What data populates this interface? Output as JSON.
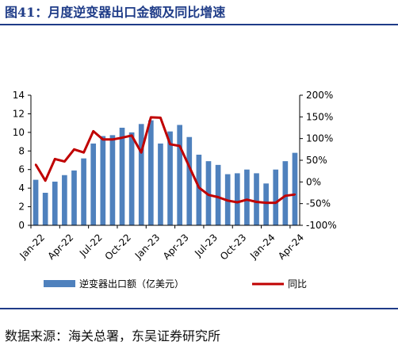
{
  "header": {
    "title": "图41：月度逆变器出口金额及同比增速"
  },
  "footer": {
    "source": "数据来源：海关总署，东吴证券研究所"
  },
  "colors": {
    "bar": "#4f81bd",
    "line": "#c00000",
    "rule": "#1f3c88"
  },
  "chart_data": {
    "type": "bar",
    "title": "",
    "categories": [
      "Jan-22",
      "Feb-22",
      "Mar-22",
      "Apr-22",
      "May-22",
      "Jun-22",
      "Jul-22",
      "Aug-22",
      "Sep-22",
      "Oct-22",
      "Nov-22",
      "Dec-22",
      "Jan-23",
      "Feb-23",
      "Mar-23",
      "Apr-23",
      "May-23",
      "Jun-23",
      "Jul-23",
      "Aug-23",
      "Sep-23",
      "Oct-23",
      "Nov-23",
      "Dec-23",
      "Jan-24",
      "Feb-24",
      "Mar-24",
      "Apr-24"
    ],
    "x_tick_labels": [
      "Jan-22",
      "Apr-22",
      "Jul-22",
      "Oct-22",
      "Jan-23",
      "Apr-23",
      "Jul-23",
      "Oct-23",
      "Jan-24",
      "Apr-24"
    ],
    "x_tick_every": 3,
    "series": [
      {
        "name": "逆变器出口额（亿美元）",
        "type": "bar",
        "axis": "left",
        "values": [
          4.9,
          3.5,
          4.7,
          5.4,
          5.9,
          7.2,
          8.8,
          9.6,
          9.7,
          10.5,
          10.0,
          10.9,
          11.3,
          8.8,
          10.1,
          10.8,
          9.5,
          7.6,
          6.9,
          6.5,
          5.5,
          5.6,
          6.0,
          5.6,
          4.5,
          6.0,
          6.9,
          7.8
        ]
      },
      {
        "name": "同比",
        "type": "line",
        "axis": "right",
        "values": [
          40,
          3,
          53,
          47,
          75,
          68,
          117,
          98,
          98,
          102,
          107,
          68,
          149,
          148,
          87,
          83,
          35,
          -13,
          -30,
          -35,
          -43,
          -47,
          -41,
          -46,
          -48,
          -48,
          -32,
          -29
        ]
      }
    ],
    "y_left": {
      "min": 0,
      "max": 14,
      "step": 2,
      "ticks": [
        "0",
        "2",
        "4",
        "6",
        "8",
        "10",
        "12",
        "14"
      ]
    },
    "y_right": {
      "min": -100,
      "max": 200,
      "step": 50,
      "ticks": [
        "-100%",
        "-50%",
        "0%",
        "50%",
        "100%",
        "150%",
        "200%"
      ]
    },
    "legend": {
      "placement": "bottom",
      "items": [
        "逆变器出口额（亿美元）",
        "同比"
      ]
    },
    "grid": false
  }
}
